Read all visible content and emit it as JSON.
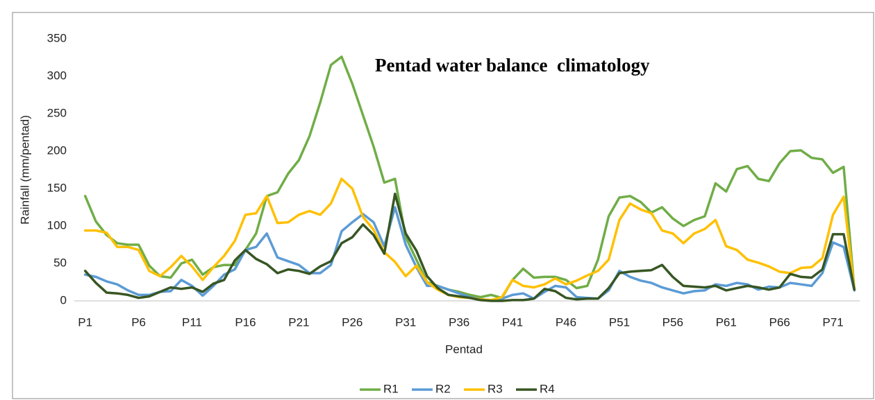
{
  "chart_data": {
    "type": "line",
    "title": "Pentad water balance  climatology",
    "x_label": "Pentad",
    "y_label": "Rainfall (mm/pentad)",
    "categories": [
      "P1",
      null,
      null,
      null,
      null,
      "P6",
      null,
      null,
      null,
      null,
      "P11",
      null,
      null,
      null,
      null,
      "P16",
      null,
      null,
      null,
      null,
      "P21",
      null,
      null,
      null,
      null,
      "P26",
      null,
      null,
      null,
      null,
      "P31",
      null,
      null,
      null,
      null,
      "P36",
      null,
      null,
      null,
      null,
      "P41",
      null,
      null,
      null,
      null,
      "P46",
      null,
      null,
      null,
      null,
      "P51",
      null,
      null,
      null,
      null,
      "P56",
      null,
      null,
      null,
      null,
      "P61",
      null,
      null,
      null,
      null,
      "P66",
      null,
      null,
      null,
      null,
      "P71",
      null,
      null
    ],
    "series": [
      {
        "name": "R1",
        "color": "#70ad47",
        "values": [
          140,
          106,
          88,
          77,
          75,
          75,
          47,
          33,
          31,
          50,
          55,
          35,
          45,
          48,
          48,
          68,
          90,
          140,
          145,
          170,
          188,
          220,
          265,
          315,
          326,
          290,
          248,
          206,
          158,
          163,
          85,
          55,
          25,
          20,
          15,
          12,
          8,
          5,
          8,
          4,
          28,
          43,
          31,
          32,
          32,
          28,
          17,
          20,
          55,
          113,
          138,
          140,
          132,
          118,
          125,
          110,
          100,
          108,
          113,
          157,
          146,
          176,
          180,
          163,
          160,
          184,
          200,
          201,
          191,
          189,
          171,
          179,
          15
        ]
      },
      {
        "name": "R2",
        "color": "#5b9bd5",
        "values": [
          35,
          32,
          26,
          22,
          14,
          8,
          8,
          12,
          13,
          28,
          20,
          7,
          20,
          35,
          42,
          68,
          72,
          90,
          58,
          53,
          48,
          37,
          37,
          48,
          93,
          105,
          116,
          105,
          73,
          125,
          75,
          45,
          20,
          20,
          15,
          10,
          5,
          2,
          1,
          3,
          8,
          10,
          3,
          12,
          20,
          18,
          5,
          4,
          3,
          14,
          40,
          32,
          27,
          24,
          18,
          14,
          10,
          13,
          14,
          22,
          20,
          24,
          22,
          15,
          19,
          18,
          24,
          22,
          20,
          37,
          78,
          72,
          14
        ]
      },
      {
        "name": "R3",
        "color": "#ffc000",
        "values": [
          94,
          94,
          91,
          72,
          72,
          68,
          40,
          33,
          45,
          60,
          46,
          28,
          45,
          60,
          80,
          115,
          117,
          140,
          104,
          105,
          115,
          120,
          115,
          130,
          163,
          150,
          112,
          95,
          65,
          52,
          33,
          47,
          25,
          15,
          8,
          5,
          4,
          2,
          1,
          5,
          28,
          20,
          18,
          22,
          30,
          22,
          27,
          34,
          40,
          55,
          108,
          130,
          122,
          117,
          94,
          90,
          77,
          90,
          96,
          108,
          73,
          68,
          55,
          51,
          46,
          39,
          37,
          44,
          45,
          57,
          115,
          139,
          15
        ]
      },
      {
        "name": "R4",
        "color": "#375623",
        "values": [
          40,
          24,
          11,
          10,
          8,
          4,
          6,
          12,
          18,
          16,
          18,
          12,
          23,
          28,
          54,
          68,
          56,
          49,
          37,
          42,
          40,
          36,
          46,
          53,
          77,
          85,
          102,
          88,
          63,
          143,
          90,
          67,
          33,
          17,
          8,
          6,
          4,
          1,
          0,
          0,
          1,
          1,
          3,
          16,
          13,
          4,
          2,
          3,
          3,
          17,
          37,
          39,
          40,
          41,
          48,
          32,
          20,
          19,
          18,
          20,
          14,
          17,
          20,
          18,
          15,
          18,
          36,
          32,
          31,
          42,
          89,
          89,
          15
        ]
      }
    ],
    "ylim": [
      0,
      350
    ],
    "yticks": [
      0,
      50,
      100,
      150,
      200,
      250,
      300,
      350
    ],
    "grid": false,
    "legend": "bottom"
  }
}
